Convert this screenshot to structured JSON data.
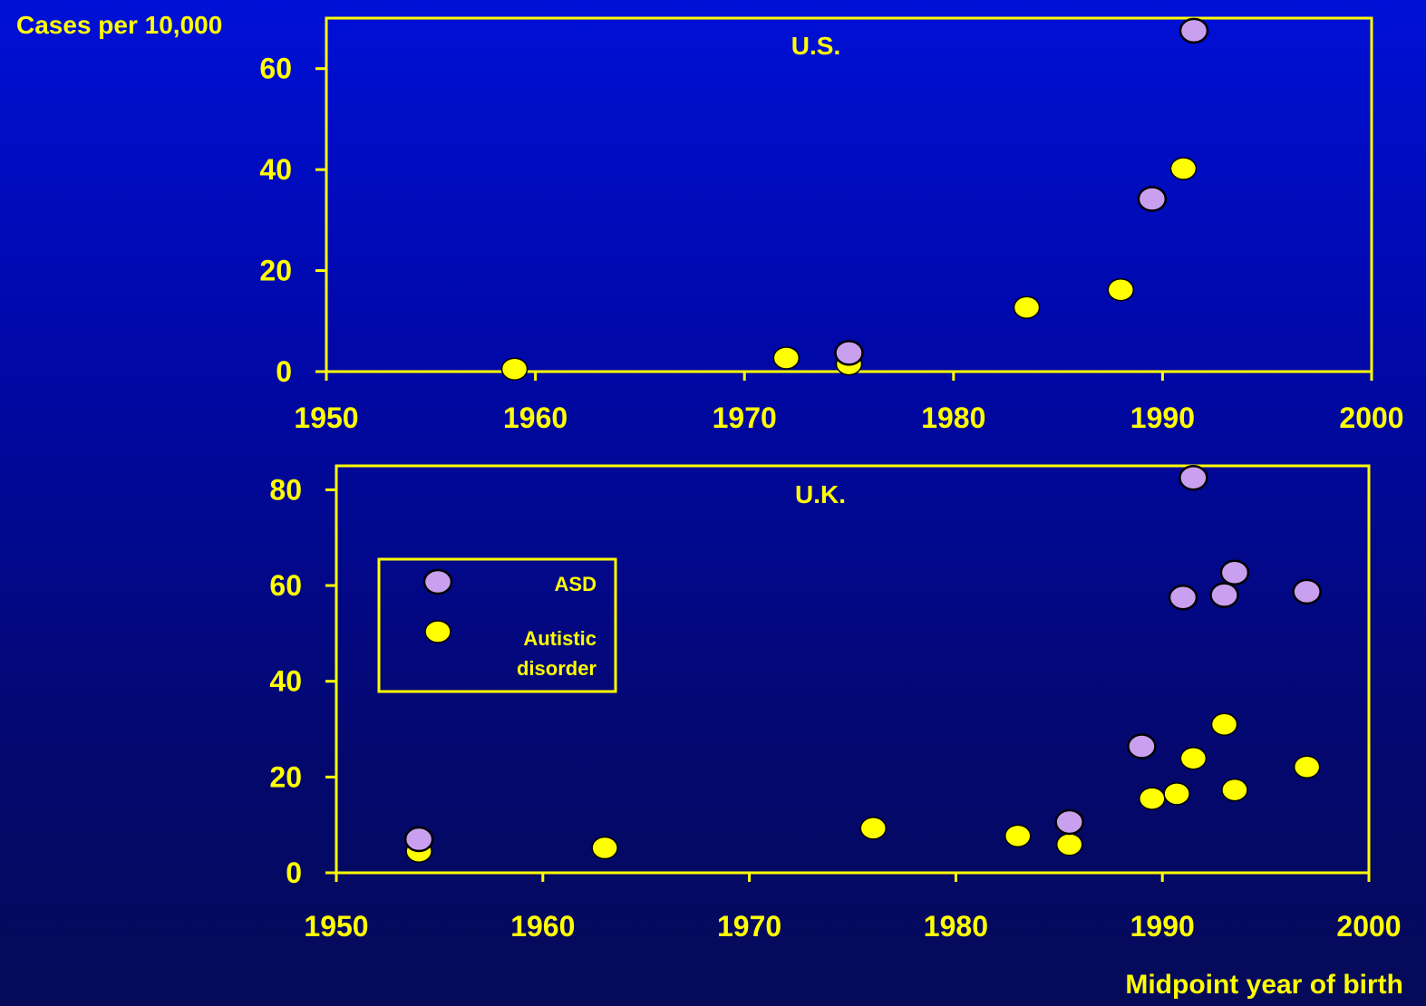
{
  "colors": {
    "axis": "#ffff00",
    "text": "#ffff00",
    "asd_fill": "#c9a0f0",
    "autistic_fill": "#ffff00",
    "marker_outline": "#000000"
  },
  "ylabel": "Cases per 10,000",
  "xlabel": "Midpoint year of birth",
  "legend": {
    "asd_label": "ASD",
    "autistic_label_line1": "Autistic",
    "autistic_label_line2": "disorder"
  },
  "chart_data": [
    {
      "type": "scatter",
      "title": "U.S.",
      "xlim": [
        1950,
        2000
      ],
      "ylim": [
        0,
        70
      ],
      "xticks": [
        1950,
        1960,
        1970,
        1980,
        1990,
        2000
      ],
      "yticks": [
        0,
        20,
        40,
        60
      ],
      "grid": false,
      "series": [
        {
          "name": "Autistic disorder",
          "x": [
            1959,
            1972,
            1975,
            1983.5,
            1988,
            1991
          ],
          "y": [
            0.5,
            2.7,
            1.5,
            12.7,
            16.2,
            40.2
          ]
        },
        {
          "name": "ASD",
          "x": [
            1975,
            1989.5,
            1991.5
          ],
          "y": [
            3.7,
            34.2,
            67.5
          ]
        }
      ]
    },
    {
      "type": "scatter",
      "title": "U.K.",
      "xlim": [
        1950,
        2000
      ],
      "ylim": [
        0,
        85
      ],
      "xticks": [
        1950,
        1960,
        1970,
        1980,
        1990,
        2000
      ],
      "yticks": [
        0,
        20,
        40,
        60,
        80
      ],
      "grid": false,
      "legend_position": "left",
      "series": [
        {
          "name": "Autistic disorder",
          "x": [
            1954,
            1963,
            1976,
            1983,
            1985.5,
            1989.5,
            1990.7,
            1991.5,
            1993,
            1993.5,
            1997
          ],
          "y": [
            4.5,
            5.2,
            9.3,
            7.7,
            5.9,
            15.5,
            16.5,
            23.9,
            31.0,
            17.3,
            22.1
          ]
        },
        {
          "name": "ASD",
          "x": [
            1954,
            1985.5,
            1989,
            1991,
            1991.5,
            1993,
            1993.5,
            1997
          ],
          "y": [
            7.0,
            10.6,
            26.4,
            57.5,
            82.5,
            58.0,
            62.7,
            58.7
          ]
        }
      ]
    }
  ]
}
